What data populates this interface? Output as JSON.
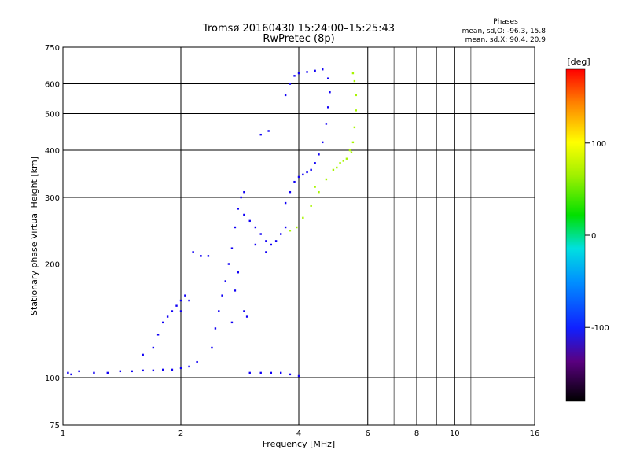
{
  "chart_data": {
    "type": "scatter",
    "title": "Tromsø 20160430 15:24:00–15:25:43",
    "subtitle": "RwPretec (8p)",
    "xlabel": "Frequency [MHz]",
    "ylabel": "Stationary phase Virtual Height [km]",
    "x_scale": "log",
    "y_scale": "log",
    "xlim": [
      1,
      16
    ],
    "ylim": [
      75,
      750
    ],
    "x_ticks": [
      {
        "value": 1,
        "label": "1"
      },
      {
        "value": 2,
        "label": "2"
      },
      {
        "value": 4,
        "label": "4"
      },
      {
        "value": 6,
        "label": "6"
      },
      {
        "value": 8,
        "label": "8"
      },
      {
        "value": 10,
        "label": "10"
      },
      {
        "value": 16,
        "label": "16"
      }
    ],
    "x_gridlines": [
      1,
      2,
      4,
      6,
      8,
      10,
      16
    ],
    "x_minor_gridlines": [
      7,
      9,
      11
    ],
    "y_ticks": [
      {
        "value": 75,
        "label": "75"
      },
      {
        "value": 100,
        "label": "100"
      },
      {
        "value": 200,
        "label": "200"
      },
      {
        "value": 300,
        "label": "300"
      },
      {
        "value": 400,
        "label": "400"
      },
      {
        "value": 500,
        "label": "500"
      },
      {
        "value": 600,
        "label": "600"
      },
      {
        "value": 750,
        "label": "750"
      }
    ],
    "grid": true,
    "stats": {
      "heading": "Phases",
      "line_o": "mean, sd,O: -96.3, 15.8",
      "line_x": "mean, sd,X:  90.4, 20.9"
    },
    "colorbar": {
      "label": "[deg]",
      "range": [
        -180,
        180
      ],
      "ticks": [
        {
          "value": 100,
          "label": "100"
        },
        {
          "value": 0,
          "label": "0"
        },
        {
          "value": -100,
          "label": "-100"
        }
      ]
    },
    "series": [
      {
        "mode": "O",
        "phase_mean": -96.3,
        "points": [
          [
            1.03,
            103
          ],
          [
            1.05,
            102
          ],
          [
            1.1,
            104
          ],
          [
            1.2,
            103
          ],
          [
            1.3,
            103
          ],
          [
            1.4,
            104
          ],
          [
            1.5,
            104
          ],
          [
            1.6,
            104.5
          ],
          [
            1.7,
            104.5
          ],
          [
            1.8,
            105
          ],
          [
            1.9,
            105
          ],
          [
            2.0,
            106
          ],
          [
            2.1,
            107
          ],
          [
            2.2,
            110
          ],
          [
            1.6,
            115
          ],
          [
            1.7,
            120
          ],
          [
            1.75,
            130
          ],
          [
            1.8,
            140
          ],
          [
            1.85,
            145
          ],
          [
            1.9,
            150
          ],
          [
            1.95,
            155
          ],
          [
            2.0,
            160
          ],
          [
            2.05,
            165
          ],
          [
            2.1,
            160
          ],
          [
            2.0,
            150
          ],
          [
            2.15,
            215
          ],
          [
            2.25,
            210
          ],
          [
            2.35,
            210
          ],
          [
            2.4,
            120
          ],
          [
            2.45,
            135
          ],
          [
            2.5,
            150
          ],
          [
            2.55,
            165
          ],
          [
            2.6,
            180
          ],
          [
            2.65,
            200
          ],
          [
            2.7,
            220
          ],
          [
            2.75,
            250
          ],
          [
            2.8,
            280
          ],
          [
            2.85,
            300
          ],
          [
            2.9,
            310
          ],
          [
            2.8,
            190
          ],
          [
            2.75,
            170
          ],
          [
            2.9,
            150
          ],
          [
            2.95,
            145
          ],
          [
            2.7,
            140
          ],
          [
            2.9,
            270
          ],
          [
            3.0,
            260
          ],
          [
            3.1,
            250
          ],
          [
            3.2,
            240
          ],
          [
            3.3,
            230
          ],
          [
            3.4,
            225
          ],
          [
            3.5,
            230
          ],
          [
            3.6,
            240
          ],
          [
            3.7,
            250
          ],
          [
            3.3,
            215
          ],
          [
            3.1,
            225
          ],
          [
            3.7,
            290
          ],
          [
            3.8,
            310
          ],
          [
            3.9,
            330
          ],
          [
            4.0,
            340
          ],
          [
            4.1,
            345
          ],
          [
            4.2,
            350
          ],
          [
            4.3,
            355
          ],
          [
            4.4,
            370
          ],
          [
            4.5,
            390
          ],
          [
            4.6,
            420
          ],
          [
            4.7,
            470
          ],
          [
            4.75,
            520
          ],
          [
            4.8,
            570
          ],
          [
            4.75,
            620
          ],
          [
            3.7,
            560
          ],
          [
            3.8,
            600
          ],
          [
            3.9,
            630
          ],
          [
            4.0,
            640
          ],
          [
            4.2,
            645
          ],
          [
            4.4,
            650
          ],
          [
            4.6,
            655
          ],
          [
            3.0,
            103
          ],
          [
            3.2,
            103
          ],
          [
            3.4,
            103
          ],
          [
            3.6,
            103
          ],
          [
            3.8,
            102
          ],
          [
            4.0,
            101
          ],
          [
            3.2,
            440
          ],
          [
            3.35,
            450
          ]
        ]
      },
      {
        "mode": "X",
        "phase_mean": 90.4,
        "points": [
          [
            3.8,
            245
          ],
          [
            3.95,
            250
          ],
          [
            4.1,
            265
          ],
          [
            4.3,
            285
          ],
          [
            4.5,
            310
          ],
          [
            4.7,
            335
          ],
          [
            4.9,
            355
          ],
          [
            5.1,
            370
          ],
          [
            5.3,
            380
          ],
          [
            5.45,
            395
          ],
          [
            5.5,
            420
          ],
          [
            5.55,
            460
          ],
          [
            5.6,
            510
          ],
          [
            5.6,
            560
          ],
          [
            5.55,
            610
          ],
          [
            5.5,
            640
          ],
          [
            5.0,
            360
          ],
          [
            5.2,
            375
          ],
          [
            5.4,
            400
          ],
          [
            4.4,
            320
          ]
        ]
      }
    ]
  }
}
